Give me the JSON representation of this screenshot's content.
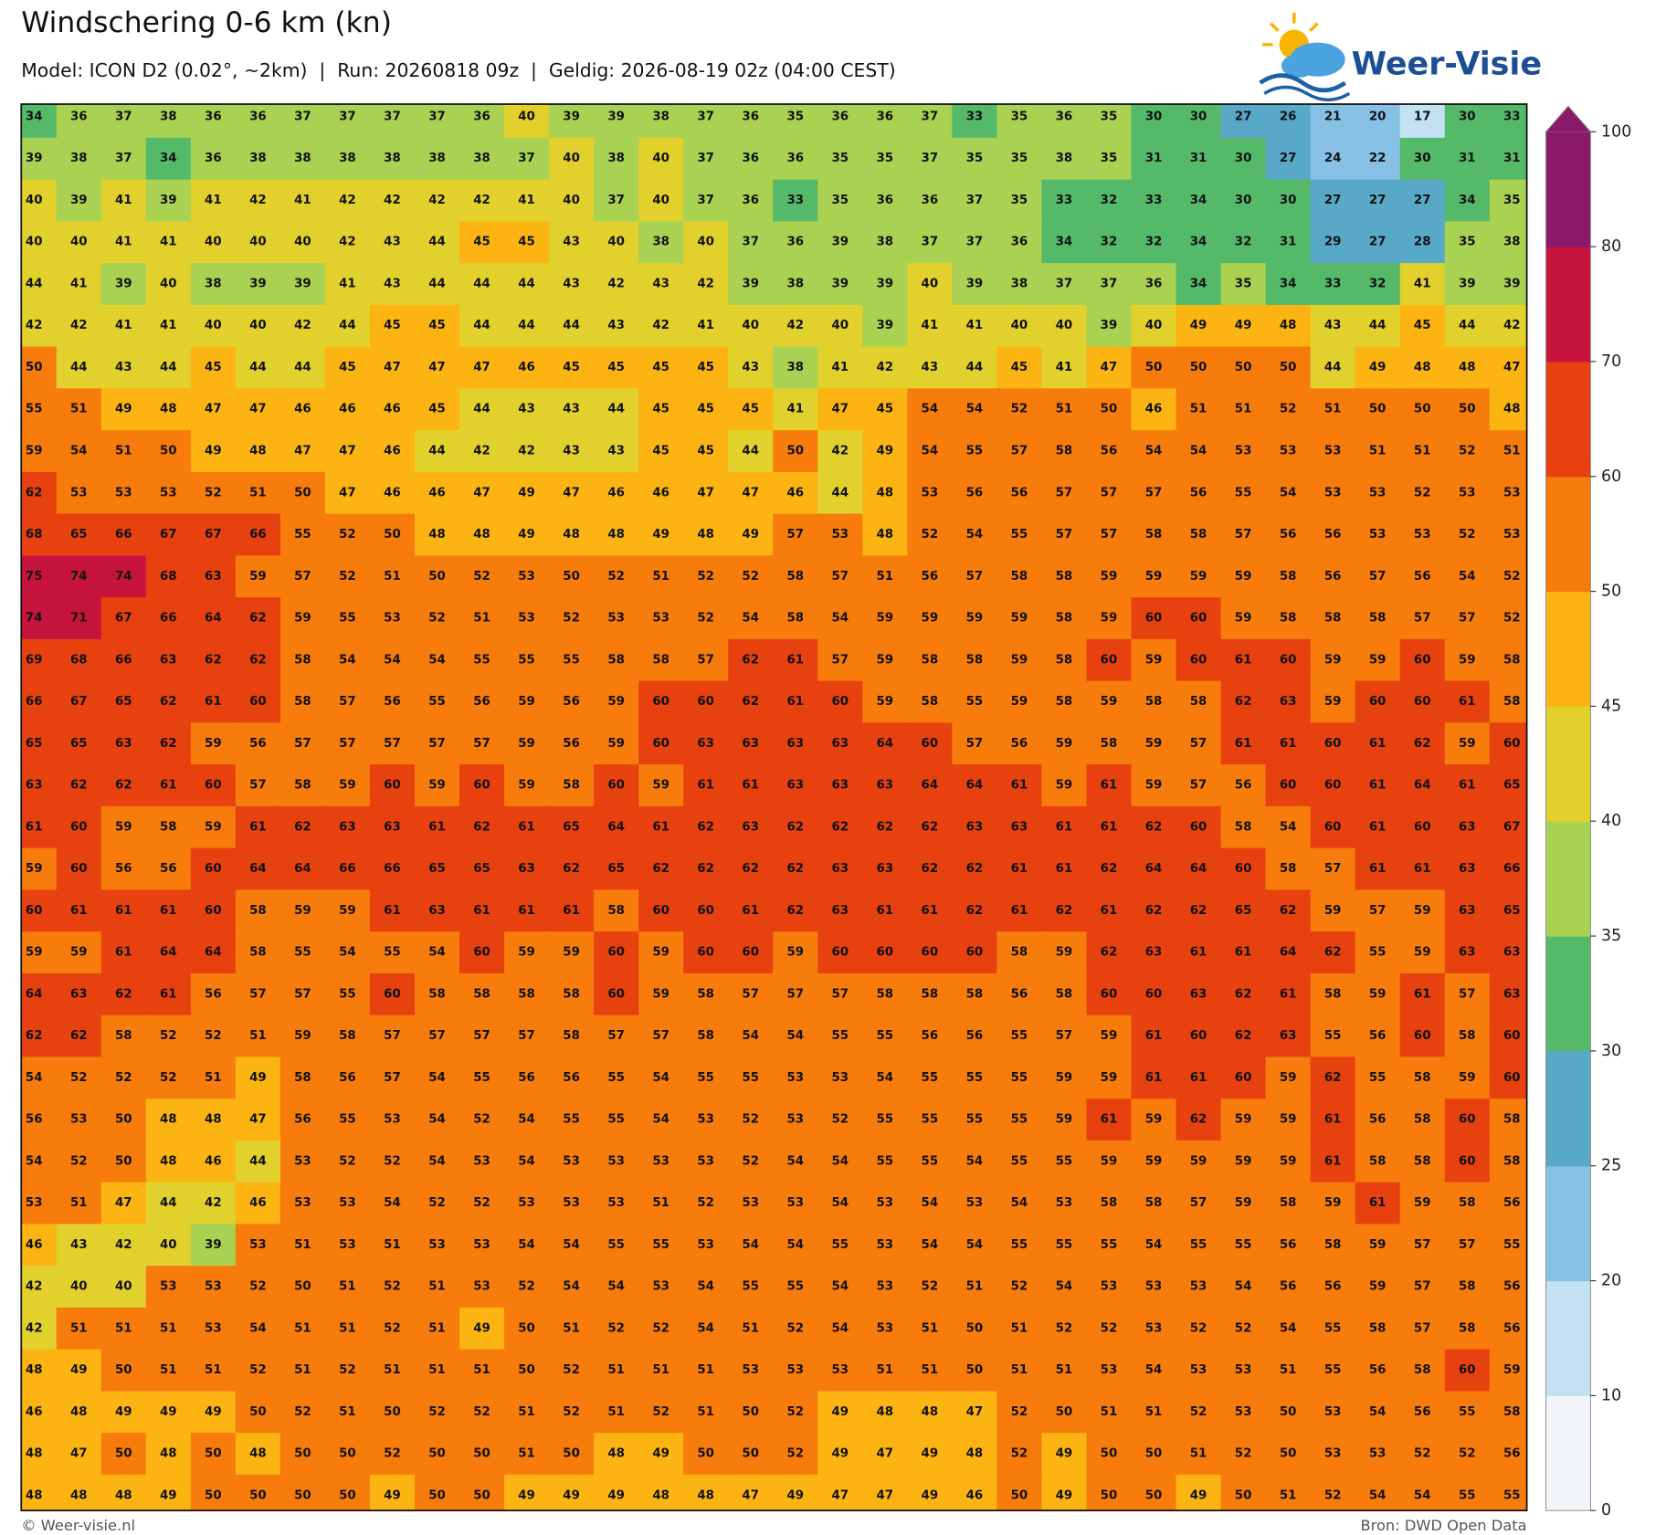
{
  "header": {
    "title": "Windschering 0-6 km (kn)",
    "subtitle": "Model: ICON D2 (0.02°, ~2km)  |  Run: 20260818 09z  |  Geldig: 2026-08-19 02z (04:00 CEST)"
  },
  "logo": "Weer-Visie",
  "map": {
    "values": [
      [
        34,
        36,
        37,
        38,
        36,
        36,
        37,
        37,
        37,
        37,
        36,
        40,
        39,
        39,
        38,
        37,
        36,
        35,
        36,
        36,
        37,
        33,
        35,
        36,
        35,
        30,
        30,
        27,
        26,
        21,
        20,
        17,
        30,
        33
      ],
      [
        39,
        38,
        37,
        34,
        36,
        38,
        38,
        38,
        38,
        38,
        38,
        37,
        40,
        38,
        40,
        37,
        36,
        36,
        35,
        35,
        37,
        35,
        35,
        38,
        35,
        31,
        31,
        30,
        27,
        24,
        22,
        30,
        31,
        31
      ],
      [
        40,
        39,
        41,
        39,
        41,
        42,
        41,
        42,
        42,
        42,
        42,
        41,
        40,
        37,
        40,
        37,
        36,
        33,
        35,
        36,
        36,
        37,
        35,
        33,
        32,
        33,
        34,
        30,
        30,
        27,
        27,
        27,
        34,
        35
      ],
      [
        40,
        40,
        41,
        41,
        40,
        40,
        40,
        42,
        43,
        44,
        45,
        45,
        43,
        40,
        38,
        40,
        37,
        36,
        39,
        38,
        37,
        37,
        36,
        34,
        32,
        32,
        34,
        32,
        31,
        29,
        27,
        28,
        35,
        38
      ],
      [
        44,
        41,
        39,
        40,
        38,
        39,
        39,
        41,
        43,
        44,
        44,
        44,
        43,
        42,
        43,
        42,
        39,
        38,
        39,
        39,
        40,
        39,
        38,
        37,
        37,
        36,
        34,
        35,
        34,
        33,
        32,
        41,
        39,
        39
      ],
      [
        42,
        42,
        41,
        41,
        40,
        40,
        42,
        44,
        45,
        45,
        44,
        44,
        44,
        43,
        42,
        41,
        40,
        42,
        40,
        39,
        41,
        41,
        40,
        40,
        39,
        40,
        49,
        49,
        48,
        43,
        44,
        45,
        44,
        42
      ],
      [
        50,
        44,
        43,
        44,
        45,
        44,
        44,
        45,
        47,
        47,
        47,
        46,
        45,
        45,
        45,
        45,
        43,
        38,
        41,
        42,
        43,
        44,
        45,
        41,
        47,
        50,
        50,
        50,
        50,
        44,
        49,
        48,
        48,
        47
      ],
      [
        55,
        51,
        49,
        48,
        47,
        47,
        46,
        46,
        46,
        45,
        44,
        43,
        43,
        44,
        45,
        45,
        45,
        41,
        47,
        45,
        54,
        54,
        52,
        51,
        50,
        46,
        51,
        51,
        52,
        51,
        50,
        50,
        50,
        48
      ],
      [
        59,
        54,
        51,
        50,
        49,
        48,
        47,
        47,
        46,
        44,
        42,
        42,
        43,
        43,
        45,
        45,
        44,
        50,
        42,
        49,
        54,
        55,
        57,
        58,
        56,
        54,
        54,
        53,
        53,
        53,
        51,
        51,
        52,
        51
      ],
      [
        62,
        53,
        53,
        53,
        52,
        51,
        50,
        47,
        46,
        46,
        47,
        49,
        47,
        46,
        46,
        47,
        47,
        46,
        44,
        48,
        53,
        56,
        56,
        57,
        57,
        57,
        56,
        55,
        54,
        53,
        53,
        52,
        53,
        53
      ],
      [
        68,
        65,
        66,
        67,
        67,
        66,
        55,
        52,
        50,
        48,
        48,
        49,
        48,
        48,
        49,
        48,
        49,
        57,
        53,
        48,
        52,
        54,
        55,
        57,
        57,
        58,
        58,
        57,
        56,
        56,
        53,
        53,
        52,
        53
      ],
      [
        75,
        74,
        74,
        68,
        63,
        59,
        57,
        52,
        51,
        50,
        52,
        53,
        50,
        52,
        51,
        52,
        52,
        58,
        57,
        51,
        56,
        57,
        58,
        58,
        59,
        59,
        59,
        59,
        58,
        56,
        57,
        56,
        54,
        52
      ],
      [
        74,
        71,
        67,
        66,
        64,
        62,
        59,
        55,
        53,
        52,
        51,
        53,
        52,
        53,
        53,
        52,
        54,
        58,
        54,
        59,
        59,
        59,
        59,
        58,
        59,
        60,
        60,
        59,
        58,
        58,
        58,
        57,
        57,
        52
      ],
      [
        69,
        68,
        66,
        63,
        62,
        62,
        58,
        54,
        54,
        54,
        55,
        55,
        55,
        58,
        58,
        57,
        62,
        61,
        57,
        59,
        58,
        58,
        59,
        58,
        60,
        59,
        60,
        61,
        60,
        59,
        59,
        60,
        59,
        58
      ],
      [
        66,
        67,
        65,
        62,
        61,
        60,
        58,
        57,
        56,
        55,
        56,
        59,
        56,
        59,
        60,
        60,
        62,
        61,
        60,
        59,
        58,
        55,
        59,
        58,
        59,
        58,
        58,
        62,
        63,
        59,
        60,
        60,
        61,
        58
      ],
      [
        65,
        65,
        63,
        62,
        59,
        56,
        57,
        57,
        57,
        57,
        57,
        59,
        56,
        59,
        60,
        63,
        63,
        63,
        63,
        64,
        60,
        57,
        56,
        59,
        58,
        59,
        57,
        61,
        61,
        60,
        61,
        62,
        59,
        60
      ],
      [
        63,
        62,
        62,
        61,
        60,
        57,
        58,
        59,
        60,
        59,
        60,
        59,
        58,
        60,
        59,
        61,
        61,
        63,
        63,
        63,
        64,
        64,
        61,
        59,
        61,
        59,
        57,
        56,
        60,
        60,
        61,
        64,
        61,
        65
      ],
      [
        61,
        60,
        59,
        58,
        59,
        61,
        62,
        63,
        63,
        61,
        62,
        61,
        65,
        64,
        61,
        62,
        63,
        62,
        62,
        62,
        62,
        63,
        63,
        61,
        61,
        62,
        60,
        58,
        54,
        60,
        61,
        60,
        63,
        67
      ],
      [
        59,
        60,
        56,
        56,
        60,
        64,
        64,
        66,
        66,
        65,
        65,
        63,
        62,
        65,
        62,
        62,
        62,
        62,
        63,
        63,
        62,
        62,
        61,
        61,
        62,
        64,
        64,
        60,
        58,
        57,
        61,
        61,
        63,
        66
      ],
      [
        60,
        61,
        61,
        61,
        60,
        58,
        59,
        59,
        61,
        63,
        61,
        61,
        61,
        58,
        60,
        60,
        61,
        62,
        63,
        61,
        61,
        62,
        61,
        62,
        61,
        62,
        62,
        65,
        62,
        59,
        57,
        59,
        63,
        65
      ],
      [
        59,
        59,
        61,
        64,
        64,
        58,
        55,
        54,
        55,
        54,
        60,
        59,
        59,
        60,
        59,
        60,
        60,
        59,
        60,
        60,
        60,
        60,
        58,
        59,
        62,
        63,
        61,
        61,
        64,
        62,
        55,
        59,
        63,
        63
      ],
      [
        64,
        63,
        62,
        61,
        56,
        57,
        57,
        55,
        60,
        58,
        58,
        58,
        58,
        60,
        59,
        58,
        57,
        57,
        57,
        58,
        58,
        58,
        56,
        58,
        60,
        60,
        63,
        62,
        61,
        58,
        59,
        61,
        57,
        63
      ],
      [
        62,
        62,
        58,
        52,
        52,
        51,
        59,
        58,
        57,
        57,
        57,
        57,
        58,
        57,
        57,
        58,
        54,
        54,
        55,
        55,
        56,
        56,
        55,
        57,
        59,
        61,
        60,
        62,
        63,
        55,
        56,
        60,
        58,
        60
      ],
      [
        54,
        52,
        52,
        52,
        51,
        49,
        58,
        56,
        57,
        54,
        55,
        56,
        56,
        55,
        54,
        55,
        55,
        53,
        53,
        54,
        55,
        55,
        55,
        59,
        59,
        61,
        61,
        60,
        59,
        62,
        55,
        58,
        59,
        60
      ],
      [
        56,
        53,
        50,
        48,
        48,
        47,
        56,
        55,
        53,
        54,
        52,
        54,
        55,
        55,
        54,
        53,
        52,
        53,
        52,
        55,
        55,
        55,
        55,
        59,
        61,
        59,
        62,
        59,
        59,
        61,
        56,
        58,
        60,
        58
      ],
      [
        54,
        52,
        50,
        48,
        46,
        44,
        53,
        52,
        52,
        54,
        53,
        54,
        53,
        53,
        53,
        53,
        52,
        54,
        54,
        55,
        55,
        54,
        55,
        55,
        59,
        59,
        59,
        59,
        59,
        61,
        58,
        58,
        60,
        58
      ],
      [
        53,
        51,
        47,
        44,
        42,
        46,
        53,
        53,
        54,
        52,
        52,
        53,
        53,
        53,
        51,
        52,
        53,
        53,
        54,
        53,
        54,
        53,
        54,
        53,
        58,
        58,
        57,
        59,
        58,
        59,
        61,
        59,
        58,
        56
      ],
      [
        46,
        43,
        42,
        40,
        39,
        53,
        51,
        53,
        51,
        53,
        53,
        54,
        54,
        55,
        55,
        53,
        54,
        54,
        55,
        53,
        54,
        54,
        55,
        55,
        55,
        54,
        55,
        55,
        56,
        58,
        59,
        57,
        57,
        55
      ],
      [
        42,
        40,
        40,
        53,
        53,
        52,
        50,
        51,
        52,
        51,
        53,
        52,
        54,
        54,
        53,
        54,
        55,
        55,
        54,
        53,
        52,
        51,
        52,
        54,
        53,
        53,
        53,
        54,
        56,
        56,
        59,
        57,
        58,
        56
      ],
      [
        42,
        51,
        51,
        51,
        53,
        54,
        51,
        51,
        52,
        51,
        49,
        50,
        51,
        52,
        52,
        54,
        51,
        52,
        54,
        53,
        51,
        50,
        51,
        52,
        52,
        53,
        52,
        52,
        54,
        55,
        58,
        57,
        58,
        56
      ],
      [
        48,
        49,
        50,
        51,
        51,
        52,
        51,
        52,
        51,
        51,
        51,
        50,
        52,
        51,
        51,
        51,
        53,
        53,
        53,
        51,
        51,
        50,
        51,
        51,
        53,
        54,
        53,
        53,
        51,
        55,
        56,
        58,
        60,
        59
      ],
      [
        46,
        48,
        49,
        49,
        49,
        50,
        52,
        51,
        50,
        52,
        52,
        51,
        52,
        51,
        52,
        51,
        50,
        52,
        49,
        48,
        48,
        47,
        52,
        50,
        51,
        51,
        52,
        53,
        50,
        53,
        54,
        56,
        55,
        58
      ],
      [
        48,
        47,
        50,
        48,
        50,
        48,
        50,
        50,
        52,
        50,
        50,
        51,
        50,
        48,
        49,
        50,
        50,
        52,
        49,
        47,
        49,
        48,
        52,
        49,
        50,
        50,
        51,
        52,
        50,
        53,
        53,
        52,
        52,
        56
      ],
      [
        48,
        48,
        48,
        49,
        50,
        50,
        50,
        50,
        49,
        50,
        50,
        49,
        49,
        49,
        48,
        48,
        47,
        49,
        47,
        47,
        49,
        46,
        50,
        49,
        50,
        50,
        49,
        50,
        51,
        52,
        54,
        54,
        55,
        55
      ]
    ]
  },
  "colorbar": {
    "ticks": [
      0,
      10,
      20,
      25,
      30,
      35,
      40,
      45,
      50,
      60,
      70,
      80,
      100
    ],
    "colors": [
      "#f1f5f9",
      "#c3e1f2",
      "#86c1e5",
      "#58a8c8",
      "#55b96a",
      "#a9d152",
      "#e2d02d",
      "#fbb412",
      "#f77c0c",
      "#e7410f",
      "#c7143d",
      "#8a1b6a"
    ]
  },
  "footer": {
    "copyright": "© Weer-visie.nl",
    "source": "Bron: DWD Open Data"
  }
}
